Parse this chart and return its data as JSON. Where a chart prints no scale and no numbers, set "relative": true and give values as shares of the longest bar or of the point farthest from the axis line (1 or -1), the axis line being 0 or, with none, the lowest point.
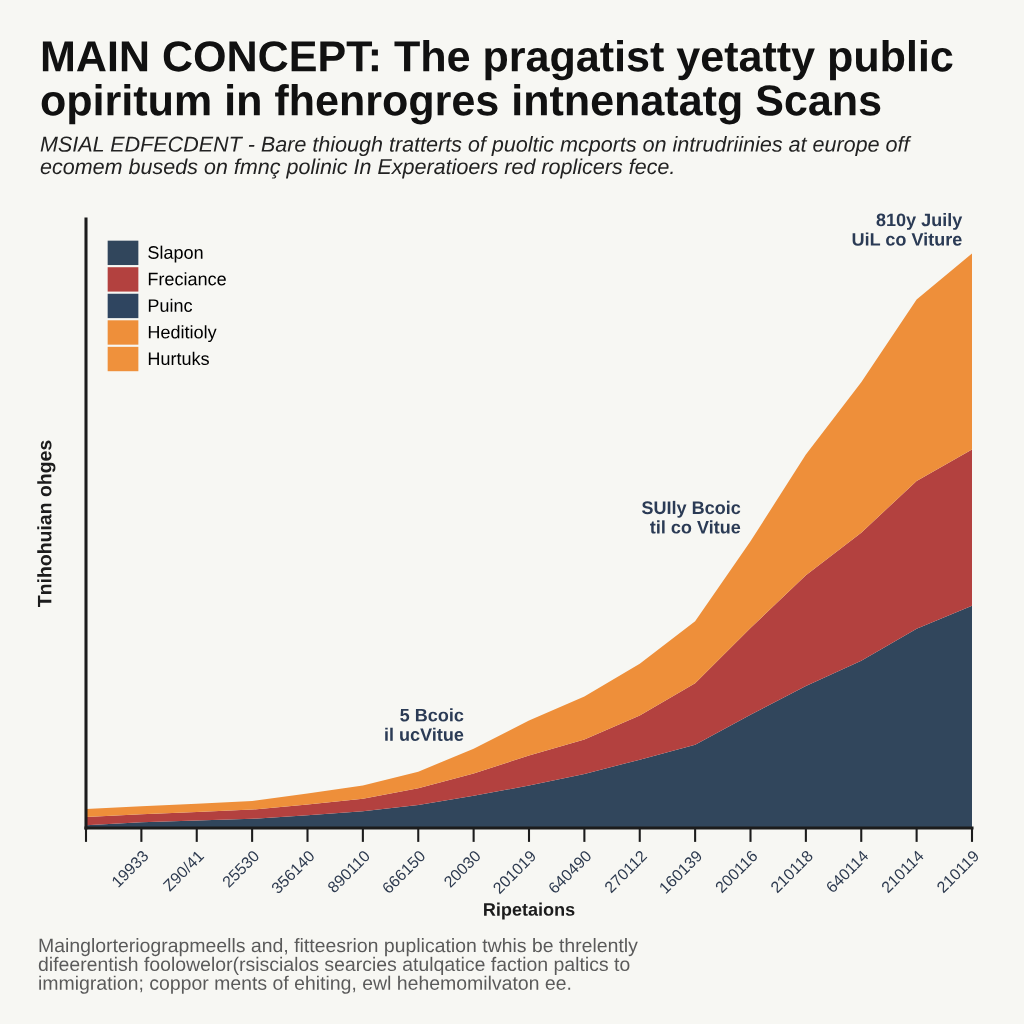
{
  "chart_data": {
    "type": "area",
    "relative": true,
    "title": "MAIN CONCEPT: The pragatist yetatty public\nopiritum in fhenrogres intnenatatg Scans",
    "subtitle": "MSIAL EDFECDENT - Bare thiough tratterts of puoltic mcports on intrudriinies at europe off\necomem buseds on fmnç polinic In Experatioers red roplicers fece.",
    "xlabel": "Ripetaions",
    "ylabel": "Tnihohuian ohges",
    "categories": [
      null,
      "19933",
      "Z90/41",
      "25530",
      "356140",
      "890110",
      "666150",
      "20030",
      "201019",
      "640490",
      "270112",
      "160139",
      "200116",
      "210118",
      "640114",
      "210114",
      "210119"
    ],
    "series": [
      {
        "name": "Slapon",
        "color": "#31465c",
        "values": [
          0.005,
          0.01,
          0.013,
          0.016,
          0.022,
          0.029,
          0.04,
          0.056,
          0.074,
          0.094,
          0.119,
          0.145,
          0.197,
          0.247,
          0.291,
          0.347,
          0.387
        ]
      },
      {
        "name": "Freciance",
        "color": "#b3413f",
        "values": [
          0.014,
          0.014,
          0.015,
          0.016,
          0.019,
          0.022,
          0.029,
          0.039,
          0.052,
          0.06,
          0.077,
          0.107,
          0.151,
          0.193,
          0.223,
          0.257,
          0.272
        ]
      },
      {
        "name": "Puinc",
        "color": "#2f4560",
        "values": [
          null,
          null,
          null,
          null,
          null,
          null,
          null,
          null,
          null,
          null,
          null,
          null,
          null,
          null,
          null,
          null,
          null
        ]
      },
      {
        "name": "Heditioly",
        "color": "#ee8f3a",
        "values": [
          0.014,
          0.014,
          0.014,
          0.015,
          0.019,
          0.023,
          0.029,
          0.043,
          0.061,
          0.075,
          0.09,
          0.108,
          0.151,
          0.21,
          0.262,
          0.316,
          0.341
        ]
      },
      {
        "name": "Hurtuks",
        "color": "#ef913c",
        "values": [
          null,
          null,
          null,
          null,
          null,
          null,
          null,
          null,
          null,
          null,
          null,
          null,
          null,
          null,
          null,
          null,
          null
        ]
      }
    ],
    "stacked": true,
    "legend": "top left",
    "annotations": [
      {
        "text": "5 Bcoic\nil ucVitue",
        "x": "20030",
        "y": 0.138
      },
      {
        "text": "SUIly Bcoic\ntil co Vitue",
        "x": "200116",
        "y": 0.499
      },
      {
        "text": "810y Juily\nUiL co Viture",
        "x": "210119",
        "y": 1.0
      },
      "Mainglorteriograpmeells and, fitteesrion puplication twhis be threlently\ndifeerentish foolowelor(rsiscialos searcies atulqatice faction paltics to\nimmigration; coppor ments of ehiting, ewl hehemomilvaton ee."
    ]
  }
}
